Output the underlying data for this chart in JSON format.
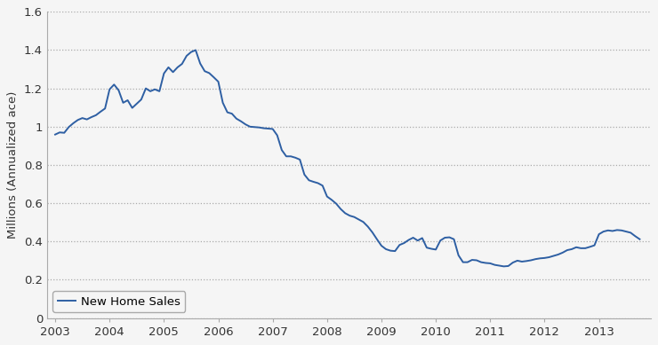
{
  "title": "",
  "ylabel": "Millions (Annualized ace)",
  "xlabel": "",
  "ylim": [
    0,
    1.6
  ],
  "yticks": [
    0,
    0.2,
    0.4,
    0.6,
    0.8,
    1.0,
    1.2,
    1.4,
    1.6
  ],
  "ytick_labels": [
    "0",
    "0.2",
    "0.4",
    "0.6",
    "0.8",
    "1",
    "1.2",
    "1.4",
    "1.6"
  ],
  "line_color": "#2E5FA3",
  "line_width": 1.4,
  "legend_label": "New Home Sales",
  "background_color": "#f5f5f5",
  "plot_bg_color": "#f5f5f5",
  "grid_color": "#aaaaaa",
  "spine_color": "#aaaaaa",
  "x_tick_labels": [
    "2003",
    "2004",
    "2005",
    "2006",
    "2007",
    "2008",
    "2009",
    "2010",
    "2011",
    "2012",
    "2013"
  ],
  "xlim_left": 2002.85,
  "xlim_right": 2013.95,
  "data": [
    [
      2003.0,
      0.959
    ],
    [
      2003.083,
      0.97
    ],
    [
      2003.167,
      0.968
    ],
    [
      2003.25,
      0.998
    ],
    [
      2003.333,
      1.018
    ],
    [
      2003.417,
      1.035
    ],
    [
      2003.5,
      1.045
    ],
    [
      2003.583,
      1.038
    ],
    [
      2003.667,
      1.05
    ],
    [
      2003.75,
      1.06
    ],
    [
      2003.833,
      1.078
    ],
    [
      2003.917,
      1.095
    ],
    [
      2004.0,
      1.195
    ],
    [
      2004.083,
      1.22
    ],
    [
      2004.167,
      1.19
    ],
    [
      2004.25,
      1.125
    ],
    [
      2004.333,
      1.138
    ],
    [
      2004.417,
      1.098
    ],
    [
      2004.5,
      1.12
    ],
    [
      2004.583,
      1.142
    ],
    [
      2004.667,
      1.2
    ],
    [
      2004.75,
      1.185
    ],
    [
      2004.833,
      1.195
    ],
    [
      2004.917,
      1.185
    ],
    [
      2005.0,
      1.278
    ],
    [
      2005.083,
      1.31
    ],
    [
      2005.167,
      1.285
    ],
    [
      2005.25,
      1.31
    ],
    [
      2005.333,
      1.328
    ],
    [
      2005.417,
      1.37
    ],
    [
      2005.5,
      1.39
    ],
    [
      2005.583,
      1.4
    ],
    [
      2005.667,
      1.33
    ],
    [
      2005.75,
      1.29
    ],
    [
      2005.833,
      1.28
    ],
    [
      2005.917,
      1.258
    ],
    [
      2006.0,
      1.235
    ],
    [
      2006.083,
      1.125
    ],
    [
      2006.167,
      1.075
    ],
    [
      2006.25,
      1.068
    ],
    [
      2006.333,
      1.042
    ],
    [
      2006.417,
      1.028
    ],
    [
      2006.5,
      1.012
    ],
    [
      2006.583,
      1.0
    ],
    [
      2006.667,
      0.998
    ],
    [
      2006.75,
      0.996
    ],
    [
      2006.833,
      0.992
    ],
    [
      2006.917,
      0.99
    ],
    [
      2007.0,
      0.988
    ],
    [
      2007.083,
      0.955
    ],
    [
      2007.167,
      0.878
    ],
    [
      2007.25,
      0.845
    ],
    [
      2007.333,
      0.845
    ],
    [
      2007.417,
      0.838
    ],
    [
      2007.5,
      0.828
    ],
    [
      2007.583,
      0.75
    ],
    [
      2007.667,
      0.72
    ],
    [
      2007.75,
      0.712
    ],
    [
      2007.833,
      0.705
    ],
    [
      2007.917,
      0.692
    ],
    [
      2008.0,
      0.635
    ],
    [
      2008.083,
      0.618
    ],
    [
      2008.167,
      0.598
    ],
    [
      2008.25,
      0.57
    ],
    [
      2008.333,
      0.548
    ],
    [
      2008.417,
      0.535
    ],
    [
      2008.5,
      0.528
    ],
    [
      2008.583,
      0.515
    ],
    [
      2008.667,
      0.502
    ],
    [
      2008.75,
      0.478
    ],
    [
      2008.833,
      0.448
    ],
    [
      2008.917,
      0.412
    ],
    [
      2009.0,
      0.378
    ],
    [
      2009.083,
      0.36
    ],
    [
      2009.167,
      0.352
    ],
    [
      2009.25,
      0.35
    ],
    [
      2009.333,
      0.382
    ],
    [
      2009.417,
      0.392
    ],
    [
      2009.5,
      0.408
    ],
    [
      2009.583,
      0.42
    ],
    [
      2009.667,
      0.405
    ],
    [
      2009.75,
      0.418
    ],
    [
      2009.833,
      0.368
    ],
    [
      2009.917,
      0.362
    ],
    [
      2010.0,
      0.358
    ],
    [
      2010.083,
      0.405
    ],
    [
      2010.167,
      0.42
    ],
    [
      2010.25,
      0.422
    ],
    [
      2010.333,
      0.412
    ],
    [
      2010.417,
      0.328
    ],
    [
      2010.5,
      0.292
    ],
    [
      2010.583,
      0.292
    ],
    [
      2010.667,
      0.304
    ],
    [
      2010.75,
      0.302
    ],
    [
      2010.833,
      0.292
    ],
    [
      2010.917,
      0.288
    ],
    [
      2011.0,
      0.286
    ],
    [
      2011.083,
      0.278
    ],
    [
      2011.167,
      0.274
    ],
    [
      2011.25,
      0.27
    ],
    [
      2011.333,
      0.272
    ],
    [
      2011.417,
      0.29
    ],
    [
      2011.5,
      0.3
    ],
    [
      2011.583,
      0.295
    ],
    [
      2011.667,
      0.298
    ],
    [
      2011.75,
      0.302
    ],
    [
      2011.833,
      0.308
    ],
    [
      2011.917,
      0.312
    ],
    [
      2012.0,
      0.314
    ],
    [
      2012.083,
      0.318
    ],
    [
      2012.167,
      0.325
    ],
    [
      2012.25,
      0.332
    ],
    [
      2012.333,
      0.342
    ],
    [
      2012.417,
      0.355
    ],
    [
      2012.5,
      0.36
    ],
    [
      2012.583,
      0.37
    ],
    [
      2012.667,
      0.365
    ],
    [
      2012.75,
      0.365
    ],
    [
      2012.833,
      0.372
    ],
    [
      2012.917,
      0.38
    ],
    [
      2013.0,
      0.438
    ],
    [
      2013.083,
      0.452
    ],
    [
      2013.167,
      0.458
    ],
    [
      2013.25,
      0.455
    ],
    [
      2013.333,
      0.46
    ],
    [
      2013.417,
      0.458
    ],
    [
      2013.5,
      0.452
    ],
    [
      2013.583,
      0.446
    ],
    [
      2013.667,
      0.428
    ],
    [
      2013.75,
      0.412
    ]
  ]
}
